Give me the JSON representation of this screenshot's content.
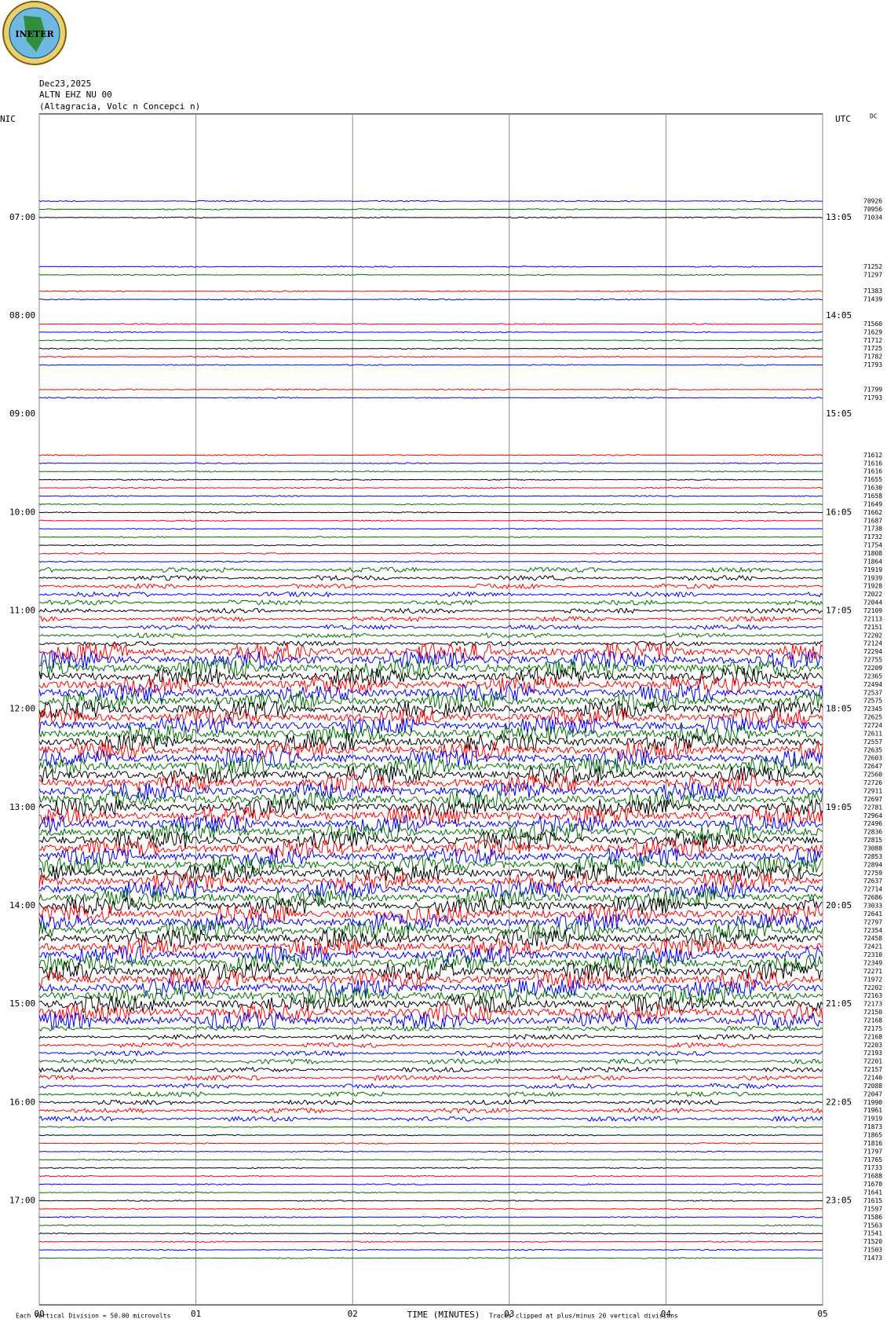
{
  "logo": "INETER",
  "header": {
    "date": "Dec23,2025",
    "station": "ALTN EHZ NU 00",
    "location": "(Altagracia, Volc  n Concepci  n)"
  },
  "left_label": "NIC",
  "right_label": "UTC",
  "dc_label": "DC",
  "left_times": [
    "07:00",
    "08:00",
    "09:00",
    "10:00",
    "11:00",
    "12:00",
    "13:00",
    "14:00",
    "15:00",
    "16:00",
    "17:00"
  ],
  "right_times": [
    "13:05",
    "14:05",
    "15:05",
    "16:05",
    "17:05",
    "18:05",
    "19:05",
    "20:05",
    "21:05",
    "22:05",
    "23:05"
  ],
  "x_ticks": [
    "00",
    "01",
    "02",
    "03",
    "04",
    "05"
  ],
  "x_label": "TIME (MINUTES)",
  "footer_left": "Each Vertical Division =   50.00 microvolts",
  "footer_right": "Traces clipped at plus/minus 20 vertical divisions",
  "trace_colors": [
    "#0000ff",
    "#007000",
    "#000000",
    "#ff0000"
  ],
  "trace_offsets": [
    "70926",
    "70956",
    "71034",
    null,
    null,
    null,
    null,
    null,
    "71252",
    "71297",
    null,
    "71383",
    "71439",
    null,
    null,
    "71560",
    "71629",
    "71712",
    "71725",
    "71782",
    "71793",
    null,
    null,
    "71799",
    "71793",
    null,
    null,
    null,
    null,
    null,
    null,
    "71612",
    "71616",
    "71616",
    "71655",
    "71630",
    "71658",
    "71649",
    "71662",
    "71687",
    "71738",
    "71732",
    "71754",
    "71808",
    "71864",
    "71919",
    "71939",
    "71928",
    "72022",
    "72044",
    "72109",
    "72113",
    "72151",
    "72202",
    "72124",
    "72294",
    "72755",
    "72209",
    "72365",
    "72494",
    "72537",
    "72575",
    "72345",
    "72625",
    "72724",
    "72611",
    "72557",
    "72635",
    "72603",
    "72647",
    "72560",
    "72726",
    "72911",
    "72697",
    "72781",
    "72964",
    "72496",
    "72836",
    "72815",
    "73088",
    "72853",
    "72894",
    "72759",
    "72637",
    "72714",
    "72686",
    "73033",
    "72641",
    "72797",
    "72354",
    "72458",
    "72421",
    "72310",
    "72349",
    "72271",
    "71972",
    "72202",
    "72163",
    "72173",
    "72150",
    "72168",
    "72175",
    "72168",
    "72203",
    "72193",
    "72201",
    "72157",
    "72140",
    "72088",
    "72047",
    "71990",
    "71961",
    "71919",
    "71873",
    "71865",
    "71816",
    "71797",
    "71765",
    "71733",
    "71688",
    "71670",
    "71641",
    "71615",
    "71597",
    "71586",
    "71563",
    "71541",
    "71520",
    "71503",
    "71473"
  ]
}
